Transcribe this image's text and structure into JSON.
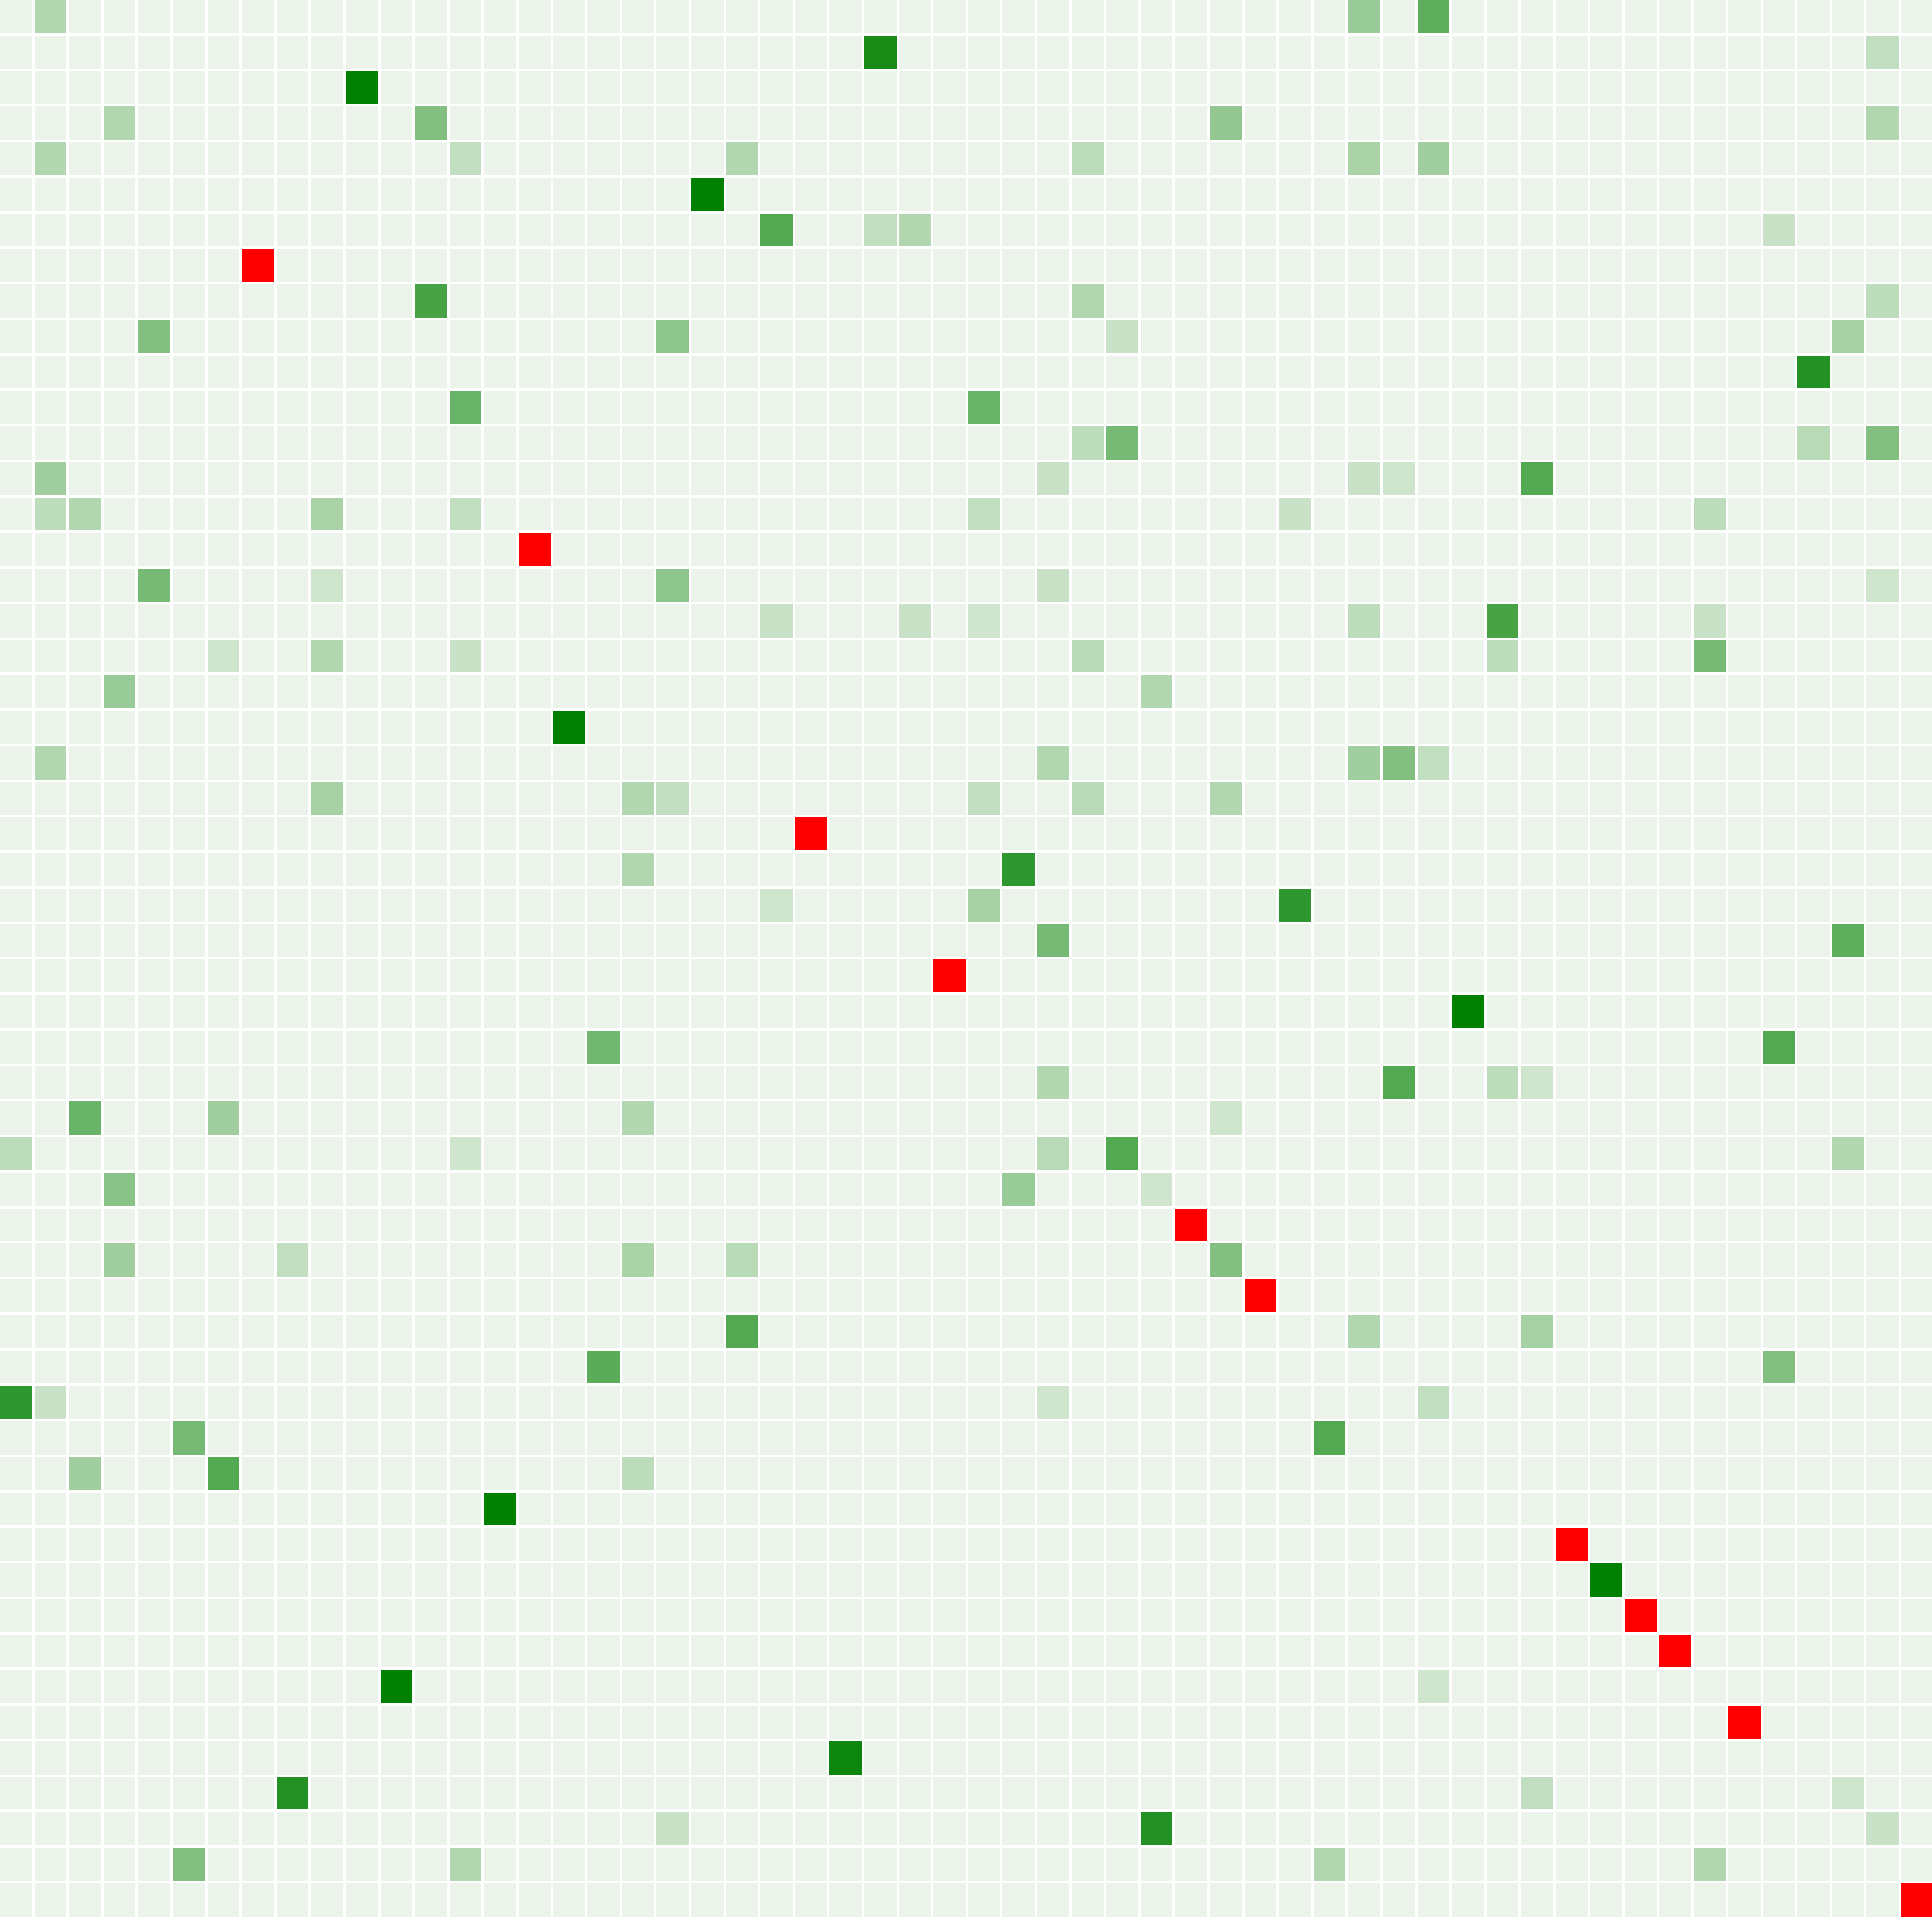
{
  "chart_data": {
    "type": "heatmap",
    "title": "",
    "xlabel": "",
    "ylabel": "",
    "n_rows": 54,
    "n_cols": 56,
    "grid": false,
    "legend": "none",
    "colors": {
      "background": "#ffffff",
      "cell_empty": "#ecf3ea",
      "scale_low": "#ecf3ea",
      "scale_high": "#008000",
      "highlight": "#ff0000"
    },
    "value_range": [
      0,
      1
    ],
    "default_value": 0.04,
    "cells": [
      [
        0,
        1,
        0.25
      ],
      [
        0,
        39,
        0.35
      ],
      [
        0,
        41,
        0.6
      ],
      [
        1,
        25,
        0.9
      ],
      [
        1,
        54,
        0.18
      ],
      [
        2,
        10,
        1.0
      ],
      [
        3,
        3,
        0.25
      ],
      [
        3,
        12,
        0.45
      ],
      [
        3,
        35,
        0.38
      ],
      [
        3,
        54,
        0.25
      ],
      [
        4,
        1,
        0.25
      ],
      [
        4,
        13,
        0.18
      ],
      [
        4,
        21,
        0.25
      ],
      [
        4,
        31,
        0.2
      ],
      [
        4,
        39,
        0.28
      ],
      [
        4,
        41,
        0.32
      ],
      [
        5,
        20,
        1.0
      ],
      [
        6,
        22,
        0.65
      ],
      [
        6,
        25,
        0.18
      ],
      [
        6,
        26,
        0.25
      ],
      [
        6,
        51,
        0.15
      ],
      [
        8,
        12,
        0.7
      ],
      [
        8,
        31,
        0.25
      ],
      [
        8,
        54,
        0.2
      ],
      [
        9,
        4,
        0.45
      ],
      [
        9,
        19,
        0.4
      ],
      [
        9,
        32,
        0.15
      ],
      [
        9,
        53,
        0.3
      ],
      [
        10,
        52,
        0.85
      ],
      [
        11,
        13,
        0.55
      ],
      [
        11,
        28,
        0.55
      ],
      [
        12,
        31,
        0.2
      ],
      [
        12,
        32,
        0.5
      ],
      [
        12,
        52,
        0.22
      ],
      [
        12,
        54,
        0.45
      ],
      [
        13,
        1,
        0.32
      ],
      [
        13,
        30,
        0.15
      ],
      [
        13,
        39,
        0.15
      ],
      [
        13,
        40,
        0.12
      ],
      [
        13,
        44,
        0.65
      ],
      [
        14,
        1,
        0.2
      ],
      [
        14,
        2,
        0.25
      ],
      [
        14,
        9,
        0.28
      ],
      [
        14,
        13,
        0.18
      ],
      [
        14,
        28,
        0.18
      ],
      [
        14,
        37,
        0.15
      ],
      [
        14,
        49,
        0.2
      ],
      [
        16,
        4,
        0.5
      ],
      [
        16,
        9,
        0.12
      ],
      [
        16,
        19,
        0.4
      ],
      [
        16,
        30,
        0.15
      ],
      [
        16,
        54,
        0.12
      ],
      [
        17,
        22,
        0.15
      ],
      [
        17,
        26,
        0.15
      ],
      [
        17,
        28,
        0.12
      ],
      [
        17,
        39,
        0.2
      ],
      [
        17,
        43,
        0.7
      ],
      [
        17,
        49,
        0.15
      ],
      [
        18,
        6,
        0.12
      ],
      [
        18,
        9,
        0.25
      ],
      [
        18,
        13,
        0.15
      ],
      [
        18,
        31,
        0.22
      ],
      [
        18,
        43,
        0.2
      ],
      [
        18,
        49,
        0.5
      ],
      [
        19,
        3,
        0.35
      ],
      [
        19,
        33,
        0.25
      ],
      [
        20,
        16,
        1.0
      ],
      [
        21,
        1,
        0.25
      ],
      [
        21,
        30,
        0.25
      ],
      [
        21,
        39,
        0.32
      ],
      [
        21,
        40,
        0.45
      ],
      [
        21,
        41,
        0.18
      ],
      [
        22,
        9,
        0.3
      ],
      [
        22,
        18,
        0.25
      ],
      [
        22,
        19,
        0.18
      ],
      [
        22,
        28,
        0.18
      ],
      [
        22,
        31,
        0.22
      ],
      [
        22,
        35,
        0.25
      ],
      [
        24,
        18,
        0.25
      ],
      [
        24,
        29,
        0.8
      ],
      [
        25,
        22,
        0.12
      ],
      [
        25,
        28,
        0.3
      ],
      [
        25,
        37,
        0.8
      ],
      [
        26,
        30,
        0.5
      ],
      [
        26,
        53,
        0.6
      ],
      [
        28,
        42,
        1.0
      ],
      [
        29,
        17,
        0.52
      ],
      [
        29,
        51,
        0.65
      ],
      [
        30,
        30,
        0.25
      ],
      [
        30,
        40,
        0.65
      ],
      [
        30,
        43,
        0.2
      ],
      [
        30,
        44,
        0.12
      ],
      [
        31,
        2,
        0.55
      ],
      [
        31,
        6,
        0.32
      ],
      [
        31,
        18,
        0.25
      ],
      [
        31,
        35,
        0.12
      ],
      [
        32,
        0,
        0.2
      ],
      [
        32,
        13,
        0.12
      ],
      [
        32,
        30,
        0.22
      ],
      [
        32,
        32,
        0.65
      ],
      [
        32,
        53,
        0.25
      ],
      [
        33,
        3,
        0.42
      ],
      [
        33,
        29,
        0.35
      ],
      [
        33,
        33,
        0.12
      ],
      [
        35,
        3,
        0.32
      ],
      [
        35,
        8,
        0.18
      ],
      [
        35,
        18,
        0.28
      ],
      [
        35,
        21,
        0.22
      ],
      [
        35,
        35,
        0.45
      ],
      [
        37,
        21,
        0.65
      ],
      [
        37,
        39,
        0.25
      ],
      [
        37,
        44,
        0.3
      ],
      [
        38,
        17,
        0.62
      ],
      [
        38,
        51,
        0.45
      ],
      [
        39,
        0,
        0.8
      ],
      [
        39,
        1,
        0.15
      ],
      [
        39,
        30,
        0.12
      ],
      [
        39,
        41,
        0.18
      ],
      [
        40,
        5,
        0.5
      ],
      [
        40,
        38,
        0.65
      ],
      [
        41,
        2,
        0.32
      ],
      [
        41,
        6,
        0.65
      ],
      [
        41,
        18,
        0.2
      ],
      [
        42,
        14,
        1.0
      ],
      [
        44,
        46,
        1.0
      ],
      [
        47,
        11,
        1.0
      ],
      [
        47,
        41,
        0.12
      ],
      [
        49,
        24,
        0.95
      ],
      [
        50,
        8,
        0.85
      ],
      [
        50,
        44,
        0.18
      ],
      [
        50,
        53,
        0.12
      ],
      [
        51,
        19,
        0.15
      ],
      [
        51,
        33,
        0.85
      ],
      [
        51,
        54,
        0.15
      ],
      [
        52,
        5,
        0.45
      ],
      [
        52,
        13,
        0.25
      ],
      [
        52,
        38,
        0.25
      ],
      [
        52,
        49,
        0.25
      ]
    ],
    "highlight_cells": [
      [
        7,
        7
      ],
      [
        15,
        15
      ],
      [
        23,
        23
      ],
      [
        27,
        27
      ],
      [
        34,
        34
      ],
      [
        36,
        36
      ],
      [
        43,
        45
      ],
      [
        45,
        47
      ],
      [
        46,
        48
      ],
      [
        48,
        50
      ],
      [
        53,
        55
      ]
    ]
  }
}
